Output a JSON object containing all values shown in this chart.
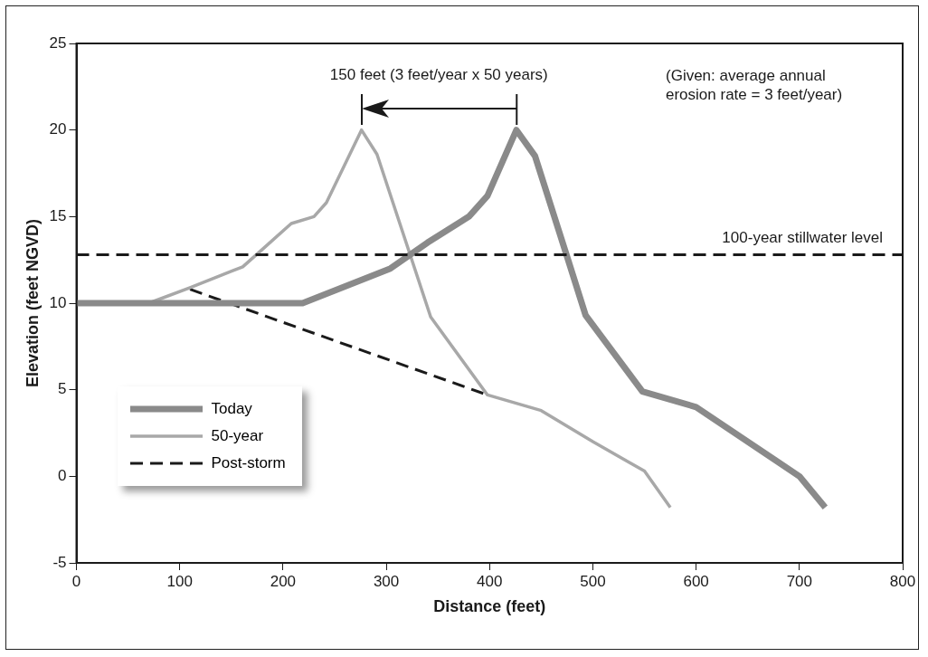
{
  "chart_data": {
    "type": "line",
    "xlabel": "Distance (feet)",
    "ylabel": "Elevation (feet NGVD)",
    "xlim": [
      0,
      800
    ],
    "xticks": [
      0,
      100,
      200,
      300,
      400,
      500,
      600,
      700,
      800
    ],
    "ylim": [
      -5,
      25
    ],
    "yticks": [
      -5,
      0,
      5,
      10,
      15,
      20,
      25
    ],
    "grid": false,
    "legend": "bottom left",
    "marker": "none",
    "series": [
      {
        "name": "Today",
        "color": "#8a8a8a",
        "line_style": "solid",
        "x": [
          0,
          219,
          304,
          340,
          380,
          398,
          426,
          444,
          475,
          493,
          548,
          600,
          700,
          725
        ],
        "values": [
          10,
          10,
          12,
          13.5,
          15,
          16.2,
          20,
          18.5,
          12.7,
          9.3,
          4.9,
          4,
          0,
          -1.8
        ]
      },
      {
        "name": "50-year",
        "color": "#a8a8a8",
        "line_style": "solid",
        "x": [
          0,
          70,
          110,
          161,
          178,
          208,
          230,
          242,
          276,
          291,
          343,
          398,
          450,
          500,
          550,
          575
        ],
        "values": [
          10,
          10,
          10.9,
          12.1,
          13,
          14.6,
          15,
          15.8,
          20,
          18.6,
          9.2,
          4.7,
          3.8,
          2,
          0.3,
          -1.8
        ]
      },
      {
        "name": "Post-storm",
        "color": "#1a1a1a",
        "line_style": "dashed",
        "x": [
          110,
          398
        ],
        "values": [
          10.8,
          4.7
        ]
      }
    ],
    "ref_lines": [
      {
        "axis": "y",
        "value": 12.8,
        "label": "100-year stillwater level",
        "color": "#1a1a1a",
        "line_style": "dashed"
      }
    ],
    "annotations": [
      "150 feet (3 feet/year x 50 years)",
      "(Given: average annual erosion rate = 3 feet/year)"
    ]
  }
}
